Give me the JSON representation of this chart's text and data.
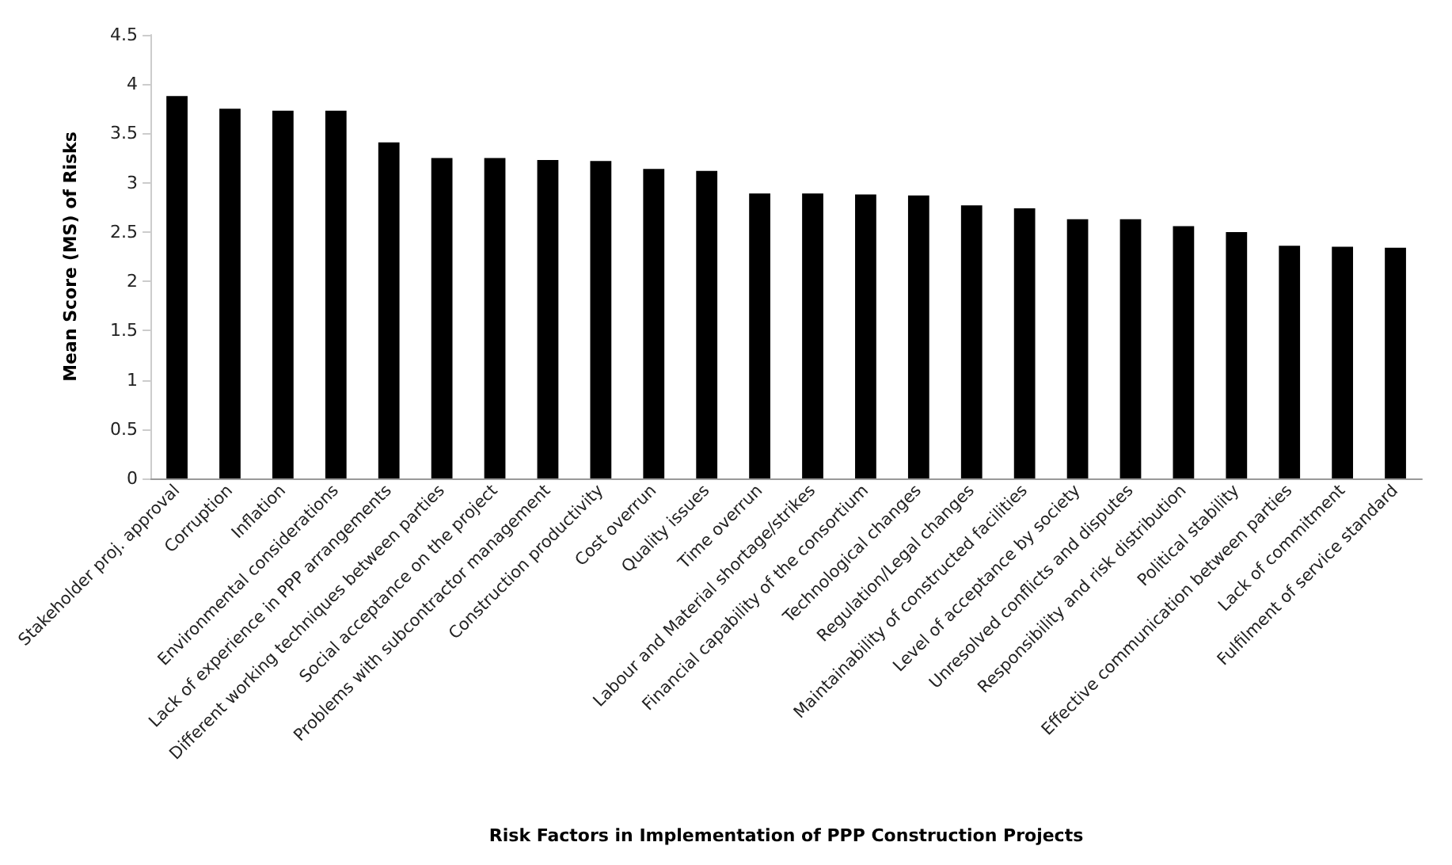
{
  "chart_data": {
    "type": "bar",
    "xlabel": "Risk Factors in Implementation of PPP Construction Projects",
    "ylabel": "Mean Score (MS) of Risks",
    "categories": [
      "Stakeholder proj. approval",
      "Corruption",
      "Inflation",
      "Environmental considerations",
      "Lack of experience in PPP arrangements",
      "Different working techniques between parties",
      "Social acceptance on the project",
      "Problems with subcontractor management",
      "Construction productivity",
      "Cost overrun",
      "Quality issues",
      "Time overrun",
      "Labour and Material shortage/strikes",
      "Financial capability of the consortium",
      "Technological changes",
      "Regulation/Legal changes",
      "Maintainability of constructed facilities",
      "Level of acceptance by society",
      "Unresolved conflicts and disputes",
      "Responsibility and risk distribution",
      "Political stability",
      "Effective communication between parties",
      "Lack of commitment",
      "Fulfilment of service standard"
    ],
    "values": [
      3.88,
      3.75,
      3.73,
      3.73,
      3.41,
      3.25,
      3.25,
      3.23,
      3.22,
      3.14,
      3.12,
      2.89,
      2.89,
      2.88,
      2.87,
      2.77,
      2.74,
      2.63,
      2.63,
      2.56,
      2.5,
      2.36,
      2.35,
      2.34
    ],
    "color": "#000000",
    "ylim": [
      0,
      4.5
    ],
    "yticks": [
      0,
      0.5,
      1,
      1.5,
      2,
      2.5,
      3,
      3.5,
      4,
      4.5
    ],
    "grid": false
  }
}
